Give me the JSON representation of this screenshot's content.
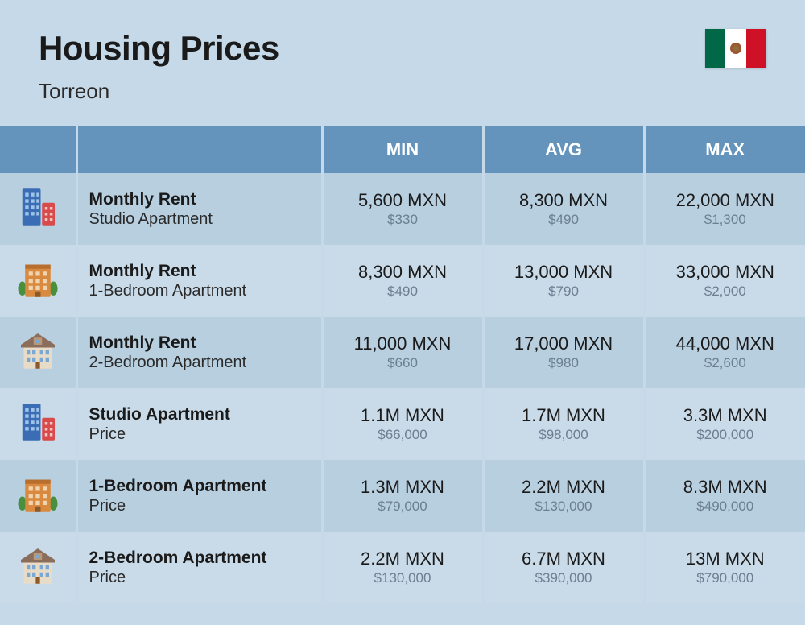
{
  "header": {
    "title": "Housing Prices",
    "city": "Torreon"
  },
  "columns": {
    "min": "MIN",
    "avg": "AVG",
    "max": "MAX"
  },
  "rows": [
    {
      "icon": "building-tall",
      "label_main": "Monthly Rent",
      "label_sub": "Studio Apartment",
      "min_main": "5,600 MXN",
      "min_sub": "$330",
      "avg_main": "8,300 MXN",
      "avg_sub": "$490",
      "max_main": "22,000 MXN",
      "max_sub": "$1,300"
    },
    {
      "icon": "building-mid",
      "label_main": "Monthly Rent",
      "label_sub": "1-Bedroom Apartment",
      "min_main": "8,300 MXN",
      "min_sub": "$490",
      "avg_main": "13,000 MXN",
      "avg_sub": "$790",
      "max_main": "33,000 MXN",
      "max_sub": "$2,000"
    },
    {
      "icon": "house",
      "label_main": "Monthly Rent",
      "label_sub": "2-Bedroom Apartment",
      "min_main": "11,000 MXN",
      "min_sub": "$660",
      "avg_main": "17,000 MXN",
      "avg_sub": "$980",
      "max_main": "44,000 MXN",
      "max_sub": "$2,600"
    },
    {
      "icon": "building-tall",
      "label_main": "Studio Apartment",
      "label_sub": "Price",
      "min_main": "1.1M MXN",
      "min_sub": "$66,000",
      "avg_main": "1.7M MXN",
      "avg_sub": "$98,000",
      "max_main": "3.3M MXN",
      "max_sub": "$200,000"
    },
    {
      "icon": "building-mid",
      "label_main": "1-Bedroom Apartment",
      "label_sub": "Price",
      "min_main": "1.3M MXN",
      "min_sub": "$79,000",
      "avg_main": "2.2M MXN",
      "avg_sub": "$130,000",
      "max_main": "8.3M MXN",
      "max_sub": "$490,000"
    },
    {
      "icon": "house",
      "label_main": "2-Bedroom Apartment",
      "label_sub": "Price",
      "min_main": "2.2M MXN",
      "min_sub": "$130,000",
      "avg_main": "6.7M MXN",
      "avg_sub": "$390,000",
      "max_main": "13M MXN",
      "max_sub": "$790,000"
    }
  ],
  "colors": {
    "page_bg": "#c5d9e8",
    "header_bg": "#6494bc",
    "row_a": "#b8cfe0",
    "row_b": "#c9dbe9",
    "text_main": "#1a1a1a",
    "text_sub": "#6b7f91"
  }
}
